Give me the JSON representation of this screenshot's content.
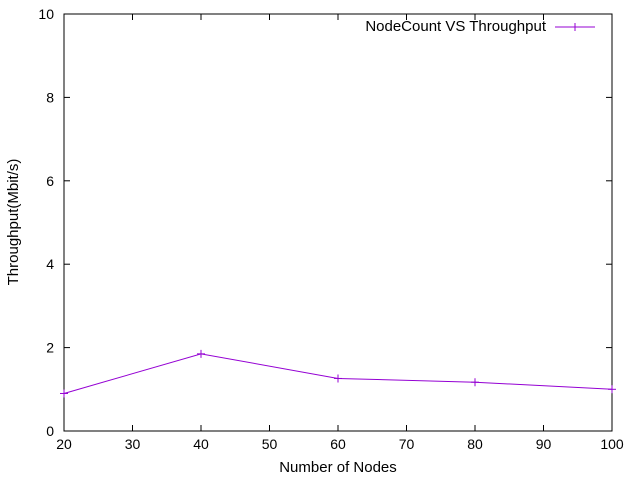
{
  "chart_data": {
    "type": "line",
    "title": "",
    "xlabel": "Number of Nodes",
    "ylabel": "Throughput(Mbit/s)",
    "xlim": [
      20,
      100
    ],
    "ylim": [
      0,
      10
    ],
    "xticks": [
      20,
      30,
      40,
      50,
      60,
      70,
      80,
      90,
      100
    ],
    "yticks": [
      0,
      2,
      4,
      6,
      8,
      10
    ],
    "grid": false,
    "legend_position": "top-right",
    "series": [
      {
        "name": "NodeCount VS Throughput",
        "color": "#9400d3",
        "marker": "plus",
        "x": [
          20,
          40,
          60,
          80,
          100
        ],
        "y": [
          0.9,
          1.85,
          1.26,
          1.17,
          1.0
        ]
      }
    ]
  }
}
